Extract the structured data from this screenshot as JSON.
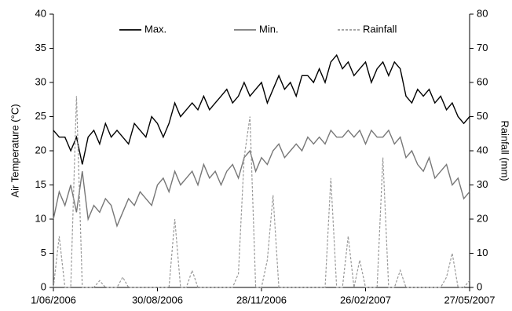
{
  "chart_data": {
    "type": "line",
    "y_label": "Air Temperature (°C)",
    "y2_label": "Rainfall (mm)",
    "x": [
      "1/06/2006",
      "6/06/2006",
      "11/06/2006",
      "16/06/2006",
      "21/06/2006",
      "26/06/2006",
      "1/07/2006",
      "6/07/2006",
      "11/07/2006",
      "16/07/2006",
      "21/07/2006",
      "26/07/2006",
      "31/07/2006",
      "5/08/2006",
      "10/08/2006",
      "15/08/2006",
      "20/08/2006",
      "25/08/2006",
      "30/08/2006",
      "4/09/2006",
      "9/09/2006",
      "14/09/2006",
      "19/09/2006",
      "24/09/2006",
      "29/09/2006",
      "4/10/2006",
      "9/10/2006",
      "14/10/2006",
      "19/10/2006",
      "24/10/2006",
      "29/10/2006",
      "3/11/2006",
      "8/11/2006",
      "13/11/2006",
      "18/11/2006",
      "23/11/2006",
      "28/11/2006",
      "3/12/2006",
      "8/12/2006",
      "13/12/2006",
      "18/12/2006",
      "23/12/2006",
      "28/12/2006",
      "2/01/2007",
      "7/01/2007",
      "12/01/2007",
      "17/01/2007",
      "22/01/2007",
      "27/01/2007",
      "1/02/2007",
      "6/02/2007",
      "11/02/2007",
      "16/02/2007",
      "21/02/2007",
      "26/02/2007",
      "3/03/2007",
      "8/03/2007",
      "13/03/2007",
      "18/03/2007",
      "23/03/2007",
      "28/03/2007",
      "2/04/2007",
      "7/04/2007",
      "12/04/2007",
      "17/04/2007",
      "22/04/2007",
      "27/04/2007",
      "2/05/2007",
      "7/05/2007",
      "12/05/2007",
      "17/05/2007",
      "22/05/2007",
      "27/05/2007"
    ],
    "xlim": [
      "1/06/2006",
      "27/05/2007"
    ],
    "xticks": [
      "1/06/2006",
      "30/08/2006",
      "28/11/2006",
      "26/02/2007",
      "27/05/2007"
    ],
    "ylim": [
      0,
      40
    ],
    "yticks": [
      0,
      5,
      10,
      15,
      20,
      25,
      30,
      35,
      40
    ],
    "y2lim": [
      0,
      80
    ],
    "y2ticks": [
      0,
      10,
      20,
      30,
      40,
      50,
      60,
      70,
      80
    ],
    "legend": "top",
    "series": [
      {
        "name": "Max.",
        "color": "#000000",
        "values": [
          23,
          22,
          22,
          20,
          22,
          18,
          22,
          23,
          21,
          24,
          22,
          23,
          22,
          21,
          24,
          23,
          22,
          25,
          24,
          22,
          24,
          27,
          25,
          26,
          27,
          26,
          28,
          26,
          27,
          28,
          29,
          27,
          28,
          30,
          28,
          29,
          30,
          27,
          29,
          31,
          29,
          30,
          28,
          31,
          31,
          30,
          32,
          30,
          33,
          34,
          32,
          33,
          31,
          32,
          33,
          30,
          32,
          33,
          31,
          33,
          32,
          28,
          27,
          29,
          28,
          29,
          27,
          28,
          26,
          27,
          25,
          24,
          25
        ]
      },
      {
        "name": "Min.",
        "color": "#777777",
        "values": [
          10,
          14,
          12,
          15,
          11,
          17,
          10,
          12,
          11,
          13,
          12,
          9,
          11,
          13,
          12,
          14,
          13,
          12,
          15,
          16,
          14,
          17,
          15,
          16,
          17,
          15,
          18,
          16,
          17,
          15,
          17,
          18,
          16,
          19,
          20,
          17,
          19,
          18,
          20,
          21,
          19,
          20,
          21,
          20,
          22,
          21,
          22,
          21,
          23,
          22,
          22,
          23,
          22,
          23,
          21,
          23,
          22,
          22,
          23,
          21,
          22,
          19,
          20,
          18,
          17,
          19,
          16,
          17,
          18,
          15,
          16,
          13,
          14
        ]
      },
      {
        "name": "Rainfall",
        "color": "#999999",
        "dash": true,
        "axis": "y2",
        "values": [
          0,
          15,
          0,
          0,
          56,
          0,
          0,
          0,
          2,
          0,
          0,
          0,
          3,
          0,
          0,
          0,
          0,
          0,
          0,
          0,
          0,
          20,
          0,
          0,
          5,
          0,
          0,
          0,
          0,
          0,
          0,
          0,
          4,
          38,
          50,
          0,
          0,
          8,
          27,
          0,
          0,
          0,
          0,
          0,
          0,
          0,
          0,
          0,
          32,
          0,
          0,
          15,
          0,
          8,
          0,
          0,
          0,
          38,
          0,
          0,
          5,
          0,
          0,
          0,
          0,
          0,
          0,
          0,
          3,
          10,
          0,
          0,
          2
        ]
      }
    ]
  }
}
